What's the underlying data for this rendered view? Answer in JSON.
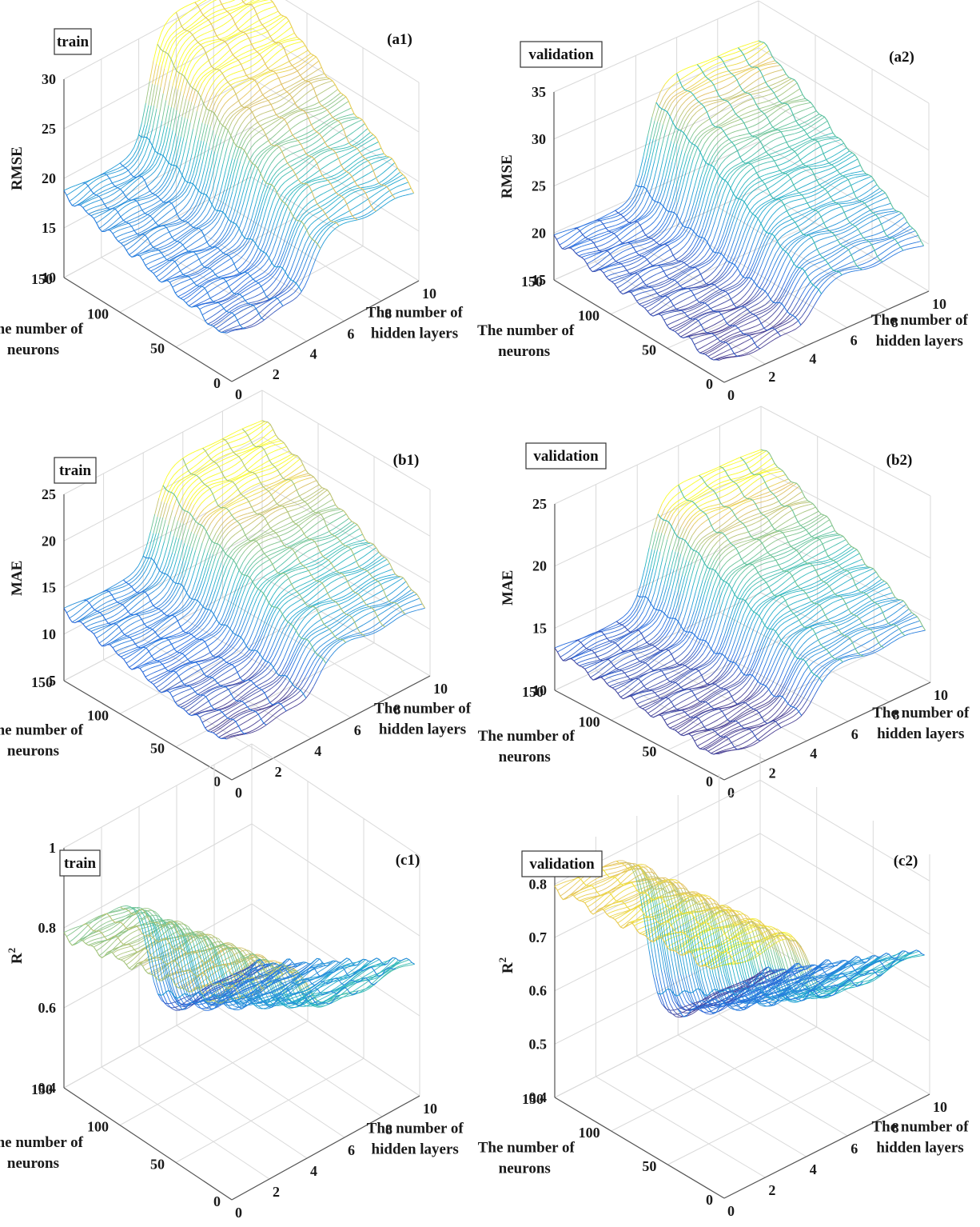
{
  "chart_data": [
    {
      "id": "a1",
      "type": "surface",
      "panel_label": "(a1)",
      "split": "train",
      "zlabel": "RMSE",
      "xlabel": "The number of neurons",
      "ylabel": "The number of hidden layers",
      "zlim": [
        10,
        30
      ],
      "zticks": [
        "10",
        "15",
        "20",
        "25",
        "30"
      ],
      "xlim": [
        0,
        150
      ],
      "xticks": [
        "0",
        "50",
        "100",
        "150"
      ],
      "ylim": [
        0,
        10
      ],
      "yticks": [
        "0",
        "2",
        "4",
        "6",
        "8",
        "10"
      ],
      "colormap": "parula",
      "color_range": [
        13,
        27
      ],
      "surface_model": {
        "base_at_max_neurons": 18.5,
        "base_at_min_neurons": 14.0,
        "rise_after_layer": 4.5,
        "rise_at_max_neurons": 12,
        "rise_at_min_neurons": 4.5
      }
    },
    {
      "id": "a2",
      "type": "surface",
      "panel_label": "(a2)",
      "split": "validation",
      "zlabel": "RMSE",
      "xlabel": "The number of neurons",
      "ylabel": "The number of hidden layers",
      "zlim": [
        15,
        35
      ],
      "zticks": [
        "15",
        "20",
        "25",
        "30",
        "35"
      ],
      "xlim": [
        0,
        150
      ],
      "xticks": [
        "0",
        "50",
        "100",
        "150"
      ],
      "ylim": [
        0,
        10
      ],
      "yticks": [
        "0",
        "2",
        "4",
        "6",
        "8",
        "10"
      ],
      "colormap": "parula",
      "color_range": [
        17,
        31
      ],
      "surface_model": {
        "base_at_max_neurons": 19.5,
        "base_at_min_neurons": 16.5,
        "rise_after_layer": 4.5,
        "rise_at_max_neurons": 11.5,
        "rise_at_min_neurons": 3
      }
    },
    {
      "id": "b1",
      "type": "surface",
      "panel_label": "(b1)",
      "split": "train",
      "zlabel": "MAE",
      "xlabel": "The number of neurons",
      "ylabel": "The number of hidden layers",
      "zlim": [
        5,
        25
      ],
      "zticks": [
        "5",
        "10",
        "15",
        "20",
        "25"
      ],
      "xlim": [
        0,
        150
      ],
      "xticks": [
        "0",
        "50",
        "100",
        "150"
      ],
      "ylim": [
        0,
        10
      ],
      "yticks": [
        "0",
        "2",
        "4",
        "6",
        "8",
        "10"
      ],
      "colormap": "parula",
      "color_range": [
        9,
        20
      ],
      "surface_model": {
        "base_at_max_neurons": 12.5,
        "base_at_min_neurons": 8.5,
        "rise_after_layer": 4.5,
        "rise_at_max_neurons": 9.5,
        "rise_at_min_neurons": 3.5
      }
    },
    {
      "id": "b2",
      "type": "surface",
      "panel_label": "(b2)",
      "split": "validation",
      "zlabel": "MAE",
      "xlabel": "The number of neurons",
      "ylabel": "The number of hidden layers",
      "zlim": [
        10,
        25
      ],
      "zticks": [
        "10",
        "15",
        "20",
        "25"
      ],
      "xlim": [
        0,
        150
      ],
      "xticks": [
        "0",
        "50",
        "100",
        "150"
      ],
      "ylim": [
        0,
        10
      ],
      "yticks": [
        "0",
        "2",
        "4",
        "6",
        "8",
        "10"
      ],
      "colormap": "parula",
      "color_range": [
        12,
        21
      ],
      "surface_model": {
        "base_at_max_neurons": 13.2,
        "base_at_min_neurons": 11.5,
        "rise_after_layer": 4.5,
        "rise_at_max_neurons": 8.5,
        "rise_at_min_neurons": 2.5
      }
    },
    {
      "id": "c1",
      "type": "surface",
      "panel_label": "(c1)",
      "split": "train",
      "zlabel": "R2",
      "xlabel": "The number of neurons",
      "ylabel": "The number of hidden layers",
      "zlim": [
        0.4,
        1.0
      ],
      "zticks": [
        "0.4",
        "0.6",
        "0.8",
        "1"
      ],
      "xlim": [
        0,
        150
      ],
      "xticks": [
        "0",
        "50",
        "100",
        "150"
      ],
      "ylim": [
        0,
        10
      ],
      "yticks": [
        "0",
        "2",
        "4",
        "6",
        "8",
        "10"
      ],
      "colormap": "parula",
      "color_range": [
        0.42,
        0.9
      ],
      "surface_model": {
        "base_at_max_neurons": 0.78,
        "base_at_min_neurons": 0.88,
        "drop_after_layer": 4.5,
        "drop_at_max_neurons": 0.33,
        "drop_at_min_neurons": 0.14
      }
    },
    {
      "id": "c2",
      "type": "surface",
      "panel_label": "(c2)",
      "split": "validation",
      "zlabel": "R2",
      "xlabel": "The number of neurons",
      "ylabel": "The number of hidden layers",
      "zlim": [
        0.4,
        0.85
      ],
      "zticks": [
        "0.4",
        "0.5",
        "0.6",
        "0.7",
        "0.8"
      ],
      "xlim": [
        0,
        150
      ],
      "xticks": [
        "0",
        "50",
        "100",
        "150"
      ],
      "ylim": [
        0,
        10
      ],
      "yticks": [
        "0",
        "2",
        "4",
        "6",
        "8",
        "10"
      ],
      "colormap": "parula",
      "color_range": [
        0.44,
        0.82
      ],
      "surface_model": {
        "base_at_max_neurons": 0.79,
        "base_at_min_neurons": 0.82,
        "drop_after_layer": 4.5,
        "drop_at_max_neurons": 0.35,
        "drop_at_min_neurons": 0.15
      }
    }
  ]
}
